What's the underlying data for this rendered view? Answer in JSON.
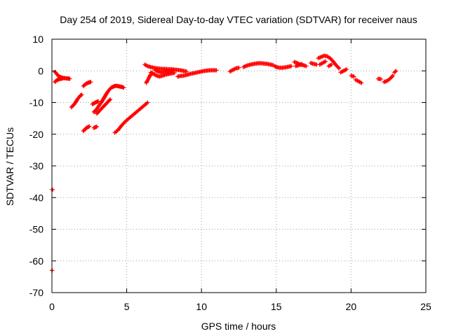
{
  "chart_data": {
    "type": "scatter",
    "title": "Day 254 of 2019, Sidereal Day-to-day VTEC variation (SDTVAR) for receiver naus",
    "xlabel": "GPS time / hours",
    "ylabel": "SDTVAR / TECUs",
    "xlim": [
      0,
      25
    ],
    "ylim": [
      -70,
      10
    ],
    "xticks": [
      0,
      5,
      10,
      15,
      20,
      25
    ],
    "yticks": [
      -70,
      -60,
      -50,
      -40,
      -30,
      -20,
      -10,
      0,
      10
    ],
    "grid": true,
    "marker_color": "#ff0000",
    "series": [
      {
        "name": "SDTVAR",
        "segments": [
          {
            "x": [
              0.0,
              0.05
            ],
            "y": [
              -37.5,
              -37.5
            ]
          },
          {
            "x": [
              0.0,
              0.02
            ],
            "y": [
              -63.0,
              -63.0
            ]
          },
          {
            "x": [
              0.2,
              0.3,
              0.4,
              0.5,
              0.6,
              0.7,
              0.8,
              0.9,
              1.0,
              1.1,
              1.2
            ],
            "y": [
              -0.3,
              -0.8,
              -1.5,
              -1.8,
              -2.0,
              -2.2,
              -2.3,
              -2.3,
              -2.4,
              -2.4,
              -2.5
            ]
          },
          {
            "x": [
              0.2,
              0.3,
              0.4,
              0.5,
              0.6,
              0.7
            ],
            "y": [
              -3.5,
              -3.0,
              -2.8,
              -2.6,
              -2.5,
              -2.4
            ]
          },
          {
            "x": [
              1.3,
              1.4,
              1.5,
              1.6,
              1.7,
              1.8,
              1.9,
              2.0
            ],
            "y": [
              -11.5,
              -11.0,
              -10.5,
              -9.8,
              -9.0,
              -8.4,
              -7.8,
              -7.5
            ]
          },
          {
            "x": [
              2.1,
              2.2,
              2.3,
              2.4,
              2.5,
              2.6
            ],
            "y": [
              -4.8,
              -4.4,
              -4.0,
              -3.8,
              -3.6,
              -3.5
            ]
          },
          {
            "x": [
              2.1,
              2.2,
              2.3,
              2.4,
              2.5
            ],
            "y": [
              -19.0,
              -18.5,
              -18.0,
              -17.8,
              -17.5
            ]
          },
          {
            "x": [
              2.8,
              2.9,
              3.0
            ],
            "y": [
              -18.0,
              -17.8,
              -17.6
            ]
          },
          {
            "x": [
              2.7,
              2.8,
              2.9,
              3.0,
              3.1
            ],
            "y": [
              -10.5,
              -10.3,
              -10.0,
              -9.8,
              -9.6
            ]
          },
          {
            "x": [
              2.8,
              2.9,
              3.0,
              3.1,
              3.2,
              3.3,
              3.4,
              3.5,
              3.6,
              3.7,
              3.8,
              3.9,
              4.0,
              4.1,
              4.2,
              4.3,
              4.4,
              4.5,
              4.6,
              4.7,
              4.8
            ],
            "y": [
              -13.0,
              -12.6,
              -12.0,
              -11.3,
              -10.6,
              -10.0,
              -9.2,
              -8.4,
              -7.6,
              -6.8,
              -6.2,
              -5.6,
              -5.2,
              -5.0,
              -4.8,
              -4.7,
              -4.8,
              -4.9,
              -5.0,
              -5.1,
              -5.3
            ]
          },
          {
            "x": [
              3.0,
              3.1,
              3.2,
              3.3,
              3.4,
              3.5,
              3.6,
              3.7,
              3.8,
              3.9
            ],
            "y": [
              -13.5,
              -13.0,
              -12.5,
              -12.0,
              -11.5,
              -11.0,
              -10.5,
              -10.0,
              -9.5,
              -9.0
            ]
          },
          {
            "x": [
              4.2,
              4.4,
              4.6,
              4.8,
              5.0,
              5.2,
              5.4,
              5.6,
              5.8,
              6.0,
              6.2,
              6.4
            ],
            "y": [
              -19.5,
              -18.8,
              -17.6,
              -16.5,
              -15.6,
              -14.8,
              -14.0,
              -13.2,
              -12.4,
              -11.6,
              -10.8,
              -10.0
            ]
          },
          {
            "x": [
              6.3,
              6.4,
              6.5,
              6.6,
              6.7
            ],
            "y": [
              -3.8,
              -3.0,
              -2.0,
              -1.2,
              -0.5
            ]
          },
          {
            "x": [
              6.2,
              6.4,
              6.6,
              6.8,
              7.0,
              7.2,
              7.4,
              7.6,
              7.8,
              8.0,
              8.2,
              8.4,
              8.6,
              8.8,
              9.0
            ],
            "y": [
              2.0,
              1.5,
              1.2,
              1.0,
              0.8,
              0.7,
              0.6,
              0.6,
              0.5,
              0.5,
              0.4,
              0.3,
              0.2,
              0.0,
              -0.2
            ]
          },
          {
            "x": [
              6.6,
              6.8,
              7.0,
              7.2,
              7.4,
              7.6,
              7.8,
              8.0,
              8.2
            ],
            "y": [
              -0.5,
              -1.0,
              -1.5,
              -1.8,
              -1.5,
              -1.2,
              -1.0,
              -0.8,
              -0.6
            ]
          },
          {
            "x": [
              6.9,
              7.1,
              7.3,
              7.5,
              7.7,
              7.9,
              8.1
            ],
            "y": [
              0.2,
              -0.2,
              -0.5,
              -0.3,
              -0.2,
              0.0,
              0.1
            ]
          },
          {
            "x": [
              8.4,
              8.6,
              8.8,
              9.0,
              9.2,
              9.4,
              9.6,
              9.8,
              10.0,
              10.2,
              10.4,
              10.6,
              10.8,
              11.0
            ],
            "y": [
              -1.8,
              -1.6,
              -1.5,
              -1.3,
              -1.0,
              -0.8,
              -0.6,
              -0.4,
              -0.2,
              0.0,
              0.1,
              0.2,
              0.2,
              0.2
            ]
          },
          {
            "x": [
              11.9,
              12.1,
              12.3,
              12.5
            ],
            "y": [
              -0.2,
              0.3,
              0.8,
              1.0
            ]
          },
          {
            "x": [
              12.8,
              13.0,
              13.2,
              13.4,
              13.6,
              13.8,
              14.0,
              14.2,
              14.4,
              14.6,
              14.8
            ],
            "y": [
              1.2,
              1.6,
              1.9,
              2.1,
              2.3,
              2.4,
              2.4,
              2.3,
              2.2,
              2.0,
              1.8
            ]
          },
          {
            "x": [
              14.9,
              15.0,
              15.2,
              15.4,
              15.6,
              15.8,
              16.0
            ],
            "y": [
              1.5,
              1.2,
              1.0,
              1.0,
              1.1,
              1.3,
              1.5
            ]
          },
          {
            "x": [
              16.2,
              16.4,
              16.6,
              16.8,
              17.0
            ],
            "y": [
              2.8,
              2.5,
              2.0,
              1.8,
              1.5
            ]
          },
          {
            "x": [
              16.3,
              16.5,
              16.7
            ],
            "y": [
              1.5,
              1.8,
              2.2
            ]
          },
          {
            "x": [
              17.3,
              17.5,
              17.7
            ],
            "y": [
              2.5,
              2.2,
              2.0
            ]
          },
          {
            "x": [
              17.8,
              18.0,
              18.2,
              18.4,
              18.6,
              18.8,
              19.0,
              19.2
            ],
            "y": [
              4.0,
              4.4,
              4.8,
              4.6,
              4.0,
              3.0,
              1.8,
              0.8
            ]
          },
          {
            "x": [
              17.9,
              18.1,
              18.3
            ],
            "y": [
              2.0,
              2.5,
              3.0
            ]
          },
          {
            "x": [
              18.5,
              18.7
            ],
            "y": [
              1.5,
              2.0
            ]
          },
          {
            "x": [
              19.3,
              19.5,
              19.7
            ],
            "y": [
              -0.5,
              0.0,
              0.5
            ]
          },
          {
            "x": [
              20.0,
              20.2
            ],
            "y": [
              -1.5,
              -1.8
            ]
          },
          {
            "x": [
              20.3,
              20.5,
              20.7
            ],
            "y": [
              -2.8,
              -3.3,
              -3.8
            ]
          },
          {
            "x": [
              21.8,
              22.0
            ],
            "y": [
              -2.5,
              -2.6
            ]
          },
          {
            "x": [
              22.2,
              22.4,
              22.6,
              22.8
            ],
            "y": [
              -3.5,
              -3.2,
              -2.5,
              -1.5
            ]
          },
          {
            "x": [
              22.9,
              23.0
            ],
            "y": [
              -0.5,
              0.0
            ]
          }
        ]
      }
    ]
  }
}
